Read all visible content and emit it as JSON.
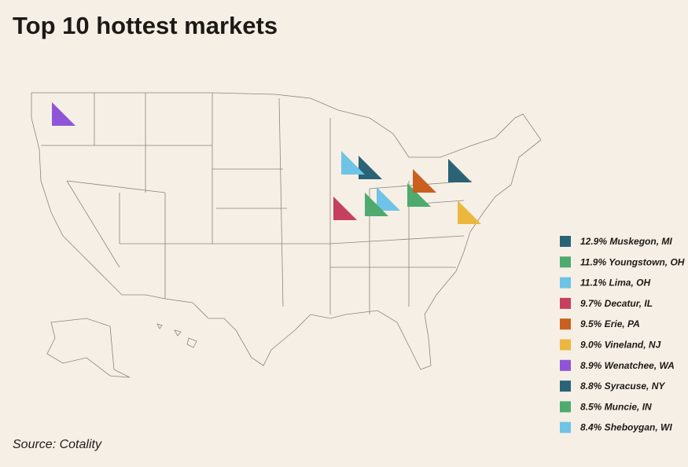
{
  "title": "Top 10 hottest markets",
  "source": "Source: Cotality",
  "markets": [
    {
      "text": "12.9% Muskegon, MI",
      "color": "#2a6375"
    },
    {
      "text": "11.9% Youngstown, OH",
      "color": "#4eaa6e"
    },
    {
      "text": "11.1% Lima, OH",
      "color": "#6ec3e6"
    },
    {
      "text": "9.7% Decatur, IL",
      "color": "#c4405e"
    },
    {
      "text": "9.5% Erie, PA",
      "color": "#c9601f"
    },
    {
      "text": "9.0% Vineland, NJ",
      "color": "#ebb83f"
    },
    {
      "text": "8.9% Wenatchee, WA",
      "color": "#8f55d9"
    },
    {
      "text": "8.8% Syracuse, NY",
      "color": "#2a6375"
    },
    {
      "text": "8.5% Muncie, IN",
      "color": "#4eaa6e"
    },
    {
      "text": "8.4% Sheboygan, WI",
      "color": "#6ec3e6"
    }
  ]
}
